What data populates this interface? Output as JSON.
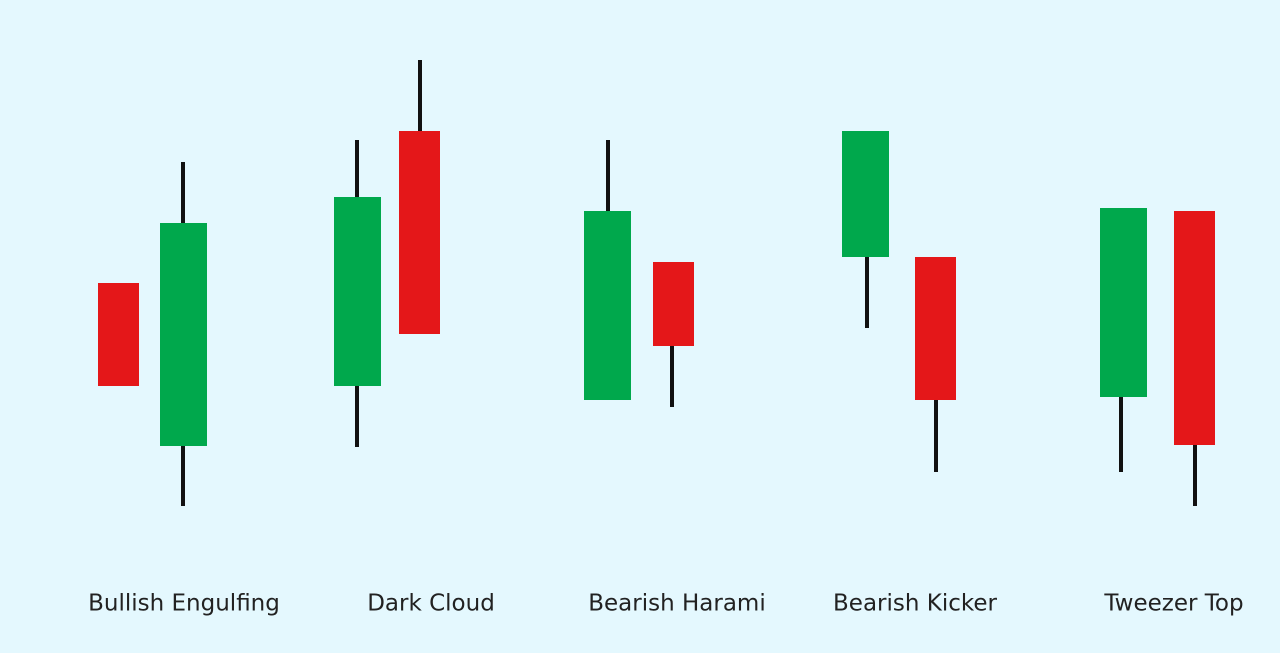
{
  "patterns": [
    {
      "label": "Bullish Engulfing"
    },
    {
      "label": "Dark Cloud"
    },
    {
      "label": "Bearish Harami"
    },
    {
      "label": "Bearish Kicker"
    },
    {
      "label": "Tweezer Top"
    }
  ]
}
